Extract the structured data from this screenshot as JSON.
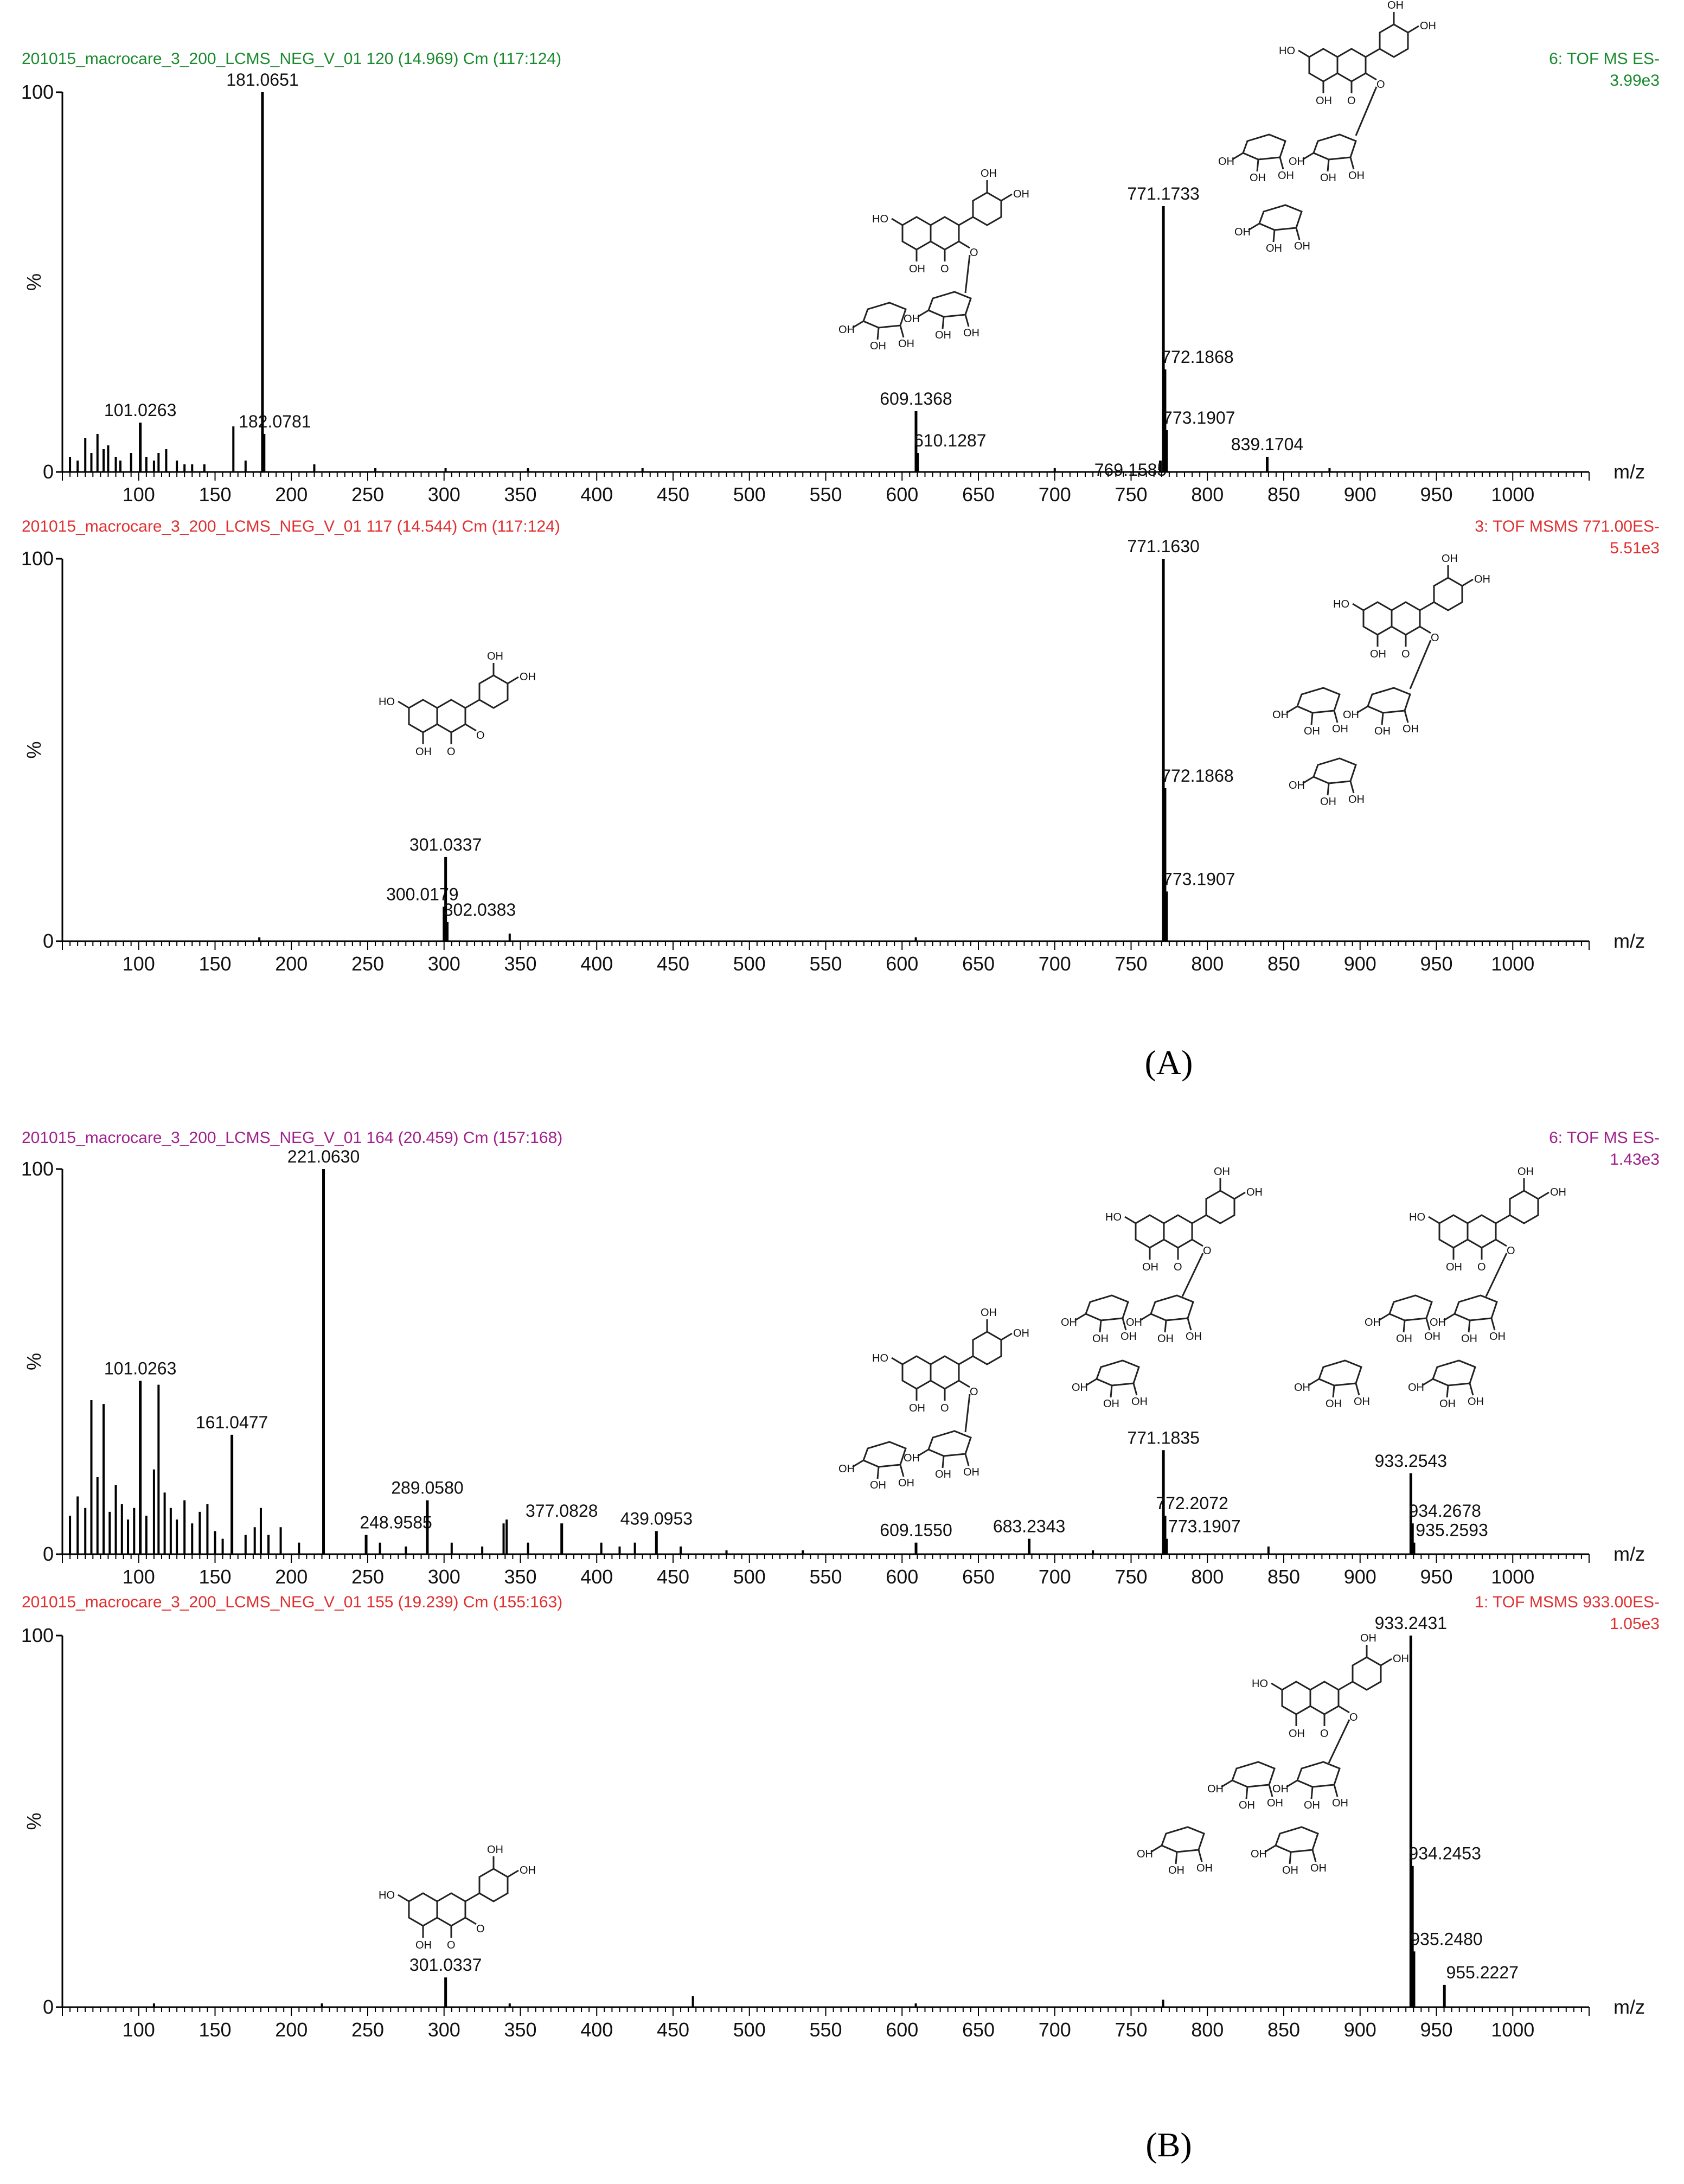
{
  "figure": {
    "panel_labels": [
      "(A)",
      "(B)"
    ]
  },
  "chart_data": [
    {
      "type": "bar",
      "panel": "A",
      "header_left": "201015_macrocare_3_200_LCMS_NEG_V_01 120 (14.969) Cm (117:124)",
      "header_right": "6: TOF MS ES-",
      "intensity": "3.99e3",
      "color": "#1a8a2e",
      "ylabel": "%",
      "xlabel": "m/z",
      "xlim": [
        50,
        1050
      ],
      "ylim": [
        0,
        100
      ],
      "x_ticks": [
        100,
        150,
        200,
        250,
        300,
        350,
        400,
        450,
        500,
        550,
        600,
        650,
        700,
        750,
        800,
        850,
        900,
        950,
        1000
      ],
      "y_ticks": [
        0,
        100
      ],
      "peaks": [
        {
          "mz": 101.0263,
          "rel": 13,
          "label": "101.0263"
        },
        {
          "mz": 181.0651,
          "rel": 100,
          "label": "181.0651"
        },
        {
          "mz": 182.0781,
          "rel": 10,
          "label": "182.0781"
        },
        {
          "mz": 609.1368,
          "rel": 16,
          "label": "609.1368"
        },
        {
          "mz": 610.1287,
          "rel": 5,
          "label": "610.1287"
        },
        {
          "mz": 769.1585,
          "rel": 3,
          "label": "769.1585"
        },
        {
          "mz": 771.1733,
          "rel": 70,
          "label": "771.1733"
        },
        {
          "mz": 772.1868,
          "rel": 27,
          "label": "772.1868"
        },
        {
          "mz": 773.1907,
          "rel": 11,
          "label": "773.1907"
        },
        {
          "mz": 839.1704,
          "rel": 4,
          "label": "839.1704"
        }
      ],
      "minor_peaks": [
        {
          "mz": 55,
          "rel": 4
        },
        {
          "mz": 60,
          "rel": 3
        },
        {
          "mz": 65,
          "rel": 9
        },
        {
          "mz": 69,
          "rel": 5
        },
        {
          "mz": 73,
          "rel": 10
        },
        {
          "mz": 77,
          "rel": 6
        },
        {
          "mz": 80,
          "rel": 7
        },
        {
          "mz": 85,
          "rel": 4
        },
        {
          "mz": 88,
          "rel": 3
        },
        {
          "mz": 95,
          "rel": 5
        },
        {
          "mz": 105,
          "rel": 4
        },
        {
          "mz": 110,
          "rel": 3
        },
        {
          "mz": 113,
          "rel": 5
        },
        {
          "mz": 118,
          "rel": 6
        },
        {
          "mz": 125,
          "rel": 3
        },
        {
          "mz": 130,
          "rel": 2
        },
        {
          "mz": 135,
          "rel": 2
        },
        {
          "mz": 143,
          "rel": 2
        },
        {
          "mz": 162,
          "rel": 12
        },
        {
          "mz": 170,
          "rel": 3
        },
        {
          "mz": 215,
          "rel": 2
        },
        {
          "mz": 255,
          "rel": 1
        },
        {
          "mz": 301,
          "rel": 1
        },
        {
          "mz": 355,
          "rel": 1
        },
        {
          "mz": 430,
          "rel": 1
        },
        {
          "mz": 700,
          "rel": 1
        },
        {
          "mz": 880,
          "rel": 1
        }
      ]
    },
    {
      "type": "bar",
      "panel": "A",
      "header_left": "201015_macrocare_3_200_LCMS_NEG_V_01 117 (14.544) Cm (117:124)",
      "header_right": "3: TOF MSMS 771.00ES-",
      "intensity": "5.51e3",
      "color": "#e03030",
      "ylabel": "%",
      "xlabel": "m/z",
      "xlim": [
        50,
        1050
      ],
      "ylim": [
        0,
        100
      ],
      "x_ticks": [
        100,
        150,
        200,
        250,
        300,
        350,
        400,
        450,
        500,
        550,
        600,
        650,
        700,
        750,
        800,
        850,
        900,
        950,
        1000
      ],
      "y_ticks": [
        0,
        100
      ],
      "peaks": [
        {
          "mz": 300.0179,
          "rel": 9,
          "label": "300.0179"
        },
        {
          "mz": 301.0337,
          "rel": 22,
          "label": "301.0337"
        },
        {
          "mz": 302.0383,
          "rel": 5,
          "label": "302.0383"
        },
        {
          "mz": 771.163,
          "rel": 100,
          "label": "771.1630"
        },
        {
          "mz": 772.1868,
          "rel": 40,
          "label": "772.1868"
        },
        {
          "mz": 773.1907,
          "rel": 13,
          "label": "773.1907"
        }
      ],
      "minor_peaks": [
        {
          "mz": 179,
          "rel": 1
        },
        {
          "mz": 343,
          "rel": 2
        },
        {
          "mz": 609,
          "rel": 1
        }
      ]
    },
    {
      "type": "bar",
      "panel": "B",
      "header_left": "201015_macrocare_3_200_LCMS_NEG_V_01 164 (20.459) Cm (157:168)",
      "header_right": "6: TOF MS ES-",
      "intensity": "1.43e3",
      "color": "#a0208c",
      "ylabel": "%",
      "xlabel": "m/z",
      "xlim": [
        50,
        1050
      ],
      "ylim": [
        0,
        100
      ],
      "x_ticks": [
        100,
        150,
        200,
        250,
        300,
        350,
        400,
        450,
        500,
        550,
        600,
        650,
        700,
        750,
        800,
        850,
        900,
        950,
        1000
      ],
      "y_ticks": [
        0,
        100
      ],
      "peaks": [
        {
          "mz": 101.0263,
          "rel": 45,
          "label": "101.0263"
        },
        {
          "mz": 161.0477,
          "rel": 31,
          "label": "161.0477"
        },
        {
          "mz": 221.063,
          "rel": 100,
          "label": "221.0630"
        },
        {
          "mz": 248.9585,
          "rel": 5,
          "label": "248.9585"
        },
        {
          "mz": 289.058,
          "rel": 14,
          "label": "289.0580"
        },
        {
          "mz": 377.0828,
          "rel": 8,
          "label": "377.0828"
        },
        {
          "mz": 439.0953,
          "rel": 6,
          "label": "439.0953"
        },
        {
          "mz": 609.155,
          "rel": 3,
          "label": "609.1550"
        },
        {
          "mz": 683.2343,
          "rel": 4,
          "label": "683.2343"
        },
        {
          "mz": 771.1835,
          "rel": 27,
          "label": "771.1835"
        },
        {
          "mz": 772.2072,
          "rel": 10,
          "label": "772.2072"
        },
        {
          "mz": 773.1907,
          "rel": 4,
          "label": "773.1907"
        },
        {
          "mz": 933.2543,
          "rel": 21,
          "label": "933.2543"
        },
        {
          "mz": 934.2678,
          "rel": 8,
          "label": "934.2678"
        },
        {
          "mz": 935.2593,
          "rel": 3,
          "label": "935.2593"
        }
      ],
      "minor_peaks": [
        {
          "mz": 55,
          "rel": 10
        },
        {
          "mz": 60,
          "rel": 15
        },
        {
          "mz": 65,
          "rel": 12
        },
        {
          "mz": 69,
          "rel": 40
        },
        {
          "mz": 73,
          "rel": 20
        },
        {
          "mz": 77,
          "rel": 39
        },
        {
          "mz": 81,
          "rel": 11
        },
        {
          "mz": 85,
          "rel": 18
        },
        {
          "mz": 89,
          "rel": 13
        },
        {
          "mz": 93,
          "rel": 9
        },
        {
          "mz": 97,
          "rel": 12
        },
        {
          "mz": 105,
          "rel": 10
        },
        {
          "mz": 110,
          "rel": 22
        },
        {
          "mz": 113,
          "rel": 44
        },
        {
          "mz": 117,
          "rel": 16
        },
        {
          "mz": 121,
          "rel": 12
        },
        {
          "mz": 125,
          "rel": 9
        },
        {
          "mz": 130,
          "rel": 14
        },
        {
          "mz": 135,
          "rel": 8
        },
        {
          "mz": 140,
          "rel": 11
        },
        {
          "mz": 145,
          "rel": 13
        },
        {
          "mz": 150,
          "rel": 6
        },
        {
          "mz": 155,
          "rel": 4
        },
        {
          "mz": 170,
          "rel": 5
        },
        {
          "mz": 176,
          "rel": 7
        },
        {
          "mz": 180,
          "rel": 12
        },
        {
          "mz": 185,
          "rel": 5
        },
        {
          "mz": 193,
          "rel": 7
        },
        {
          "mz": 205,
          "rel": 3
        },
        {
          "mz": 258,
          "rel": 3
        },
        {
          "mz": 275,
          "rel": 2
        },
        {
          "mz": 305,
          "rel": 3
        },
        {
          "mz": 325,
          "rel": 2
        },
        {
          "mz": 339,
          "rel": 8
        },
        {
          "mz": 341,
          "rel": 9
        },
        {
          "mz": 355,
          "rel": 3
        },
        {
          "mz": 403,
          "rel": 3
        },
        {
          "mz": 415,
          "rel": 2
        },
        {
          "mz": 425,
          "rel": 3
        },
        {
          "mz": 455,
          "rel": 2
        },
        {
          "mz": 485,
          "rel": 1
        },
        {
          "mz": 535,
          "rel": 1
        },
        {
          "mz": 725,
          "rel": 1
        },
        {
          "mz": 840,
          "rel": 2
        }
      ]
    },
    {
      "type": "bar",
      "panel": "B",
      "header_left": "201015_macrocare_3_200_LCMS_NEG_V_01 155 (19.239) Cm (155:163)",
      "header_right": "1: TOF MSMS 933.00ES-",
      "intensity": "1.05e3",
      "color": "#e03030",
      "ylabel": "%",
      "xlabel": "m/z",
      "xlim": [
        50,
        1050
      ],
      "ylim": [
        0,
        100
      ],
      "x_ticks": [
        100,
        150,
        200,
        250,
        300,
        350,
        400,
        450,
        500,
        550,
        600,
        650,
        700,
        750,
        800,
        850,
        900,
        950,
        1000
      ],
      "y_ticks": [
        0,
        100
      ],
      "peaks": [
        {
          "mz": 301.0337,
          "rel": 8,
          "label": "301.0337"
        },
        {
          "mz": 933.2431,
          "rel": 100,
          "label": "933.2431"
        },
        {
          "mz": 934.2453,
          "rel": 38,
          "label": "934.2453"
        },
        {
          "mz": 935.248,
          "rel": 15,
          "label": "935.2480"
        },
        {
          "mz": 955.2227,
          "rel": 6,
          "label": "955.2227"
        }
      ],
      "minor_peaks": [
        {
          "mz": 110,
          "rel": 1
        },
        {
          "mz": 220,
          "rel": 1
        },
        {
          "mz": 343,
          "rel": 1
        },
        {
          "mz": 463,
          "rel": 3
        },
        {
          "mz": 609,
          "rel": 1
        },
        {
          "mz": 771,
          "rel": 2
        }
      ]
    }
  ]
}
